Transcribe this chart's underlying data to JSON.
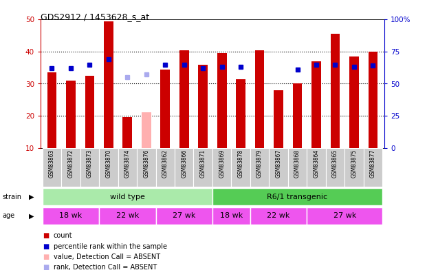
{
  "title": "GDS2912 / 1453628_s_at",
  "samples": [
    "GSM83863",
    "GSM83872",
    "GSM83873",
    "GSM83870",
    "GSM83874",
    "GSM83876",
    "GSM83862",
    "GSM83866",
    "GSM83871",
    "GSM83869",
    "GSM83878",
    "GSM83879",
    "GSM83867",
    "GSM83868",
    "GSM83864",
    "GSM83865",
    "GSM83875",
    "GSM83877"
  ],
  "count_values": [
    33.5,
    31.0,
    32.5,
    49.5,
    19.5,
    null,
    34.5,
    40.5,
    36.0,
    39.5,
    31.5,
    40.5,
    28.0,
    30.0,
    37.0,
    45.5,
    38.5,
    40.0
  ],
  "count_absent": [
    false,
    false,
    false,
    false,
    false,
    true,
    false,
    false,
    false,
    false,
    false,
    false,
    false,
    false,
    false,
    false,
    false,
    false
  ],
  "absent_count_value": 21.0,
  "rank_values_pct": [
    62,
    62,
    65,
    69,
    null,
    null,
    65,
    65,
    62,
    63,
    63,
    null,
    null,
    61,
    65,
    65,
    63,
    64
  ],
  "rank_absent": [
    false,
    false,
    false,
    false,
    true,
    true,
    false,
    false,
    false,
    false,
    false,
    false,
    false,
    false,
    false,
    false,
    false,
    false
  ],
  "absent_rank_pct_1": 55,
  "absent_rank_pct_2": 57,
  "rank_absent_indices": [
    4,
    5
  ],
  "ylim_left": [
    10,
    50
  ],
  "ylim_right": [
    0,
    100
  ],
  "yticks_left": [
    10,
    20,
    30,
    40,
    50
  ],
  "yticks_right": [
    0,
    25,
    50,
    75,
    100
  ],
  "ytick_labels_right": [
    "0",
    "25",
    "50",
    "75",
    "100%"
  ],
  "color_count": "#cc0000",
  "color_count_absent": "#ffb0b0",
  "color_rank": "#0000cc",
  "color_rank_absent": "#aaaaee",
  "color_wt_bg": "#aaeaaa",
  "color_tg_bg": "#55cc55",
  "color_age_bg": "#ee55ee",
  "color_sample_bg": "#cccccc",
  "strain_labels": [
    "wild type",
    "R6/1 transgenic"
  ],
  "age_spans": [
    [
      0,
      2,
      "18 wk"
    ],
    [
      3,
      5,
      "22 wk"
    ],
    [
      6,
      8,
      "27 wk"
    ],
    [
      9,
      10,
      "18 wk"
    ],
    [
      11,
      13,
      "22 wk"
    ],
    [
      14,
      17,
      "27 wk"
    ]
  ],
  "bar_width": 0.5,
  "legend_items": [
    {
      "color": "#cc0000",
      "label": "count"
    },
    {
      "color": "#0000cc",
      "label": "percentile rank within the sample"
    },
    {
      "color": "#ffb0b0",
      "label": "value, Detection Call = ABSENT"
    },
    {
      "color": "#aaaaee",
      "label": "rank, Detection Call = ABSENT"
    }
  ]
}
